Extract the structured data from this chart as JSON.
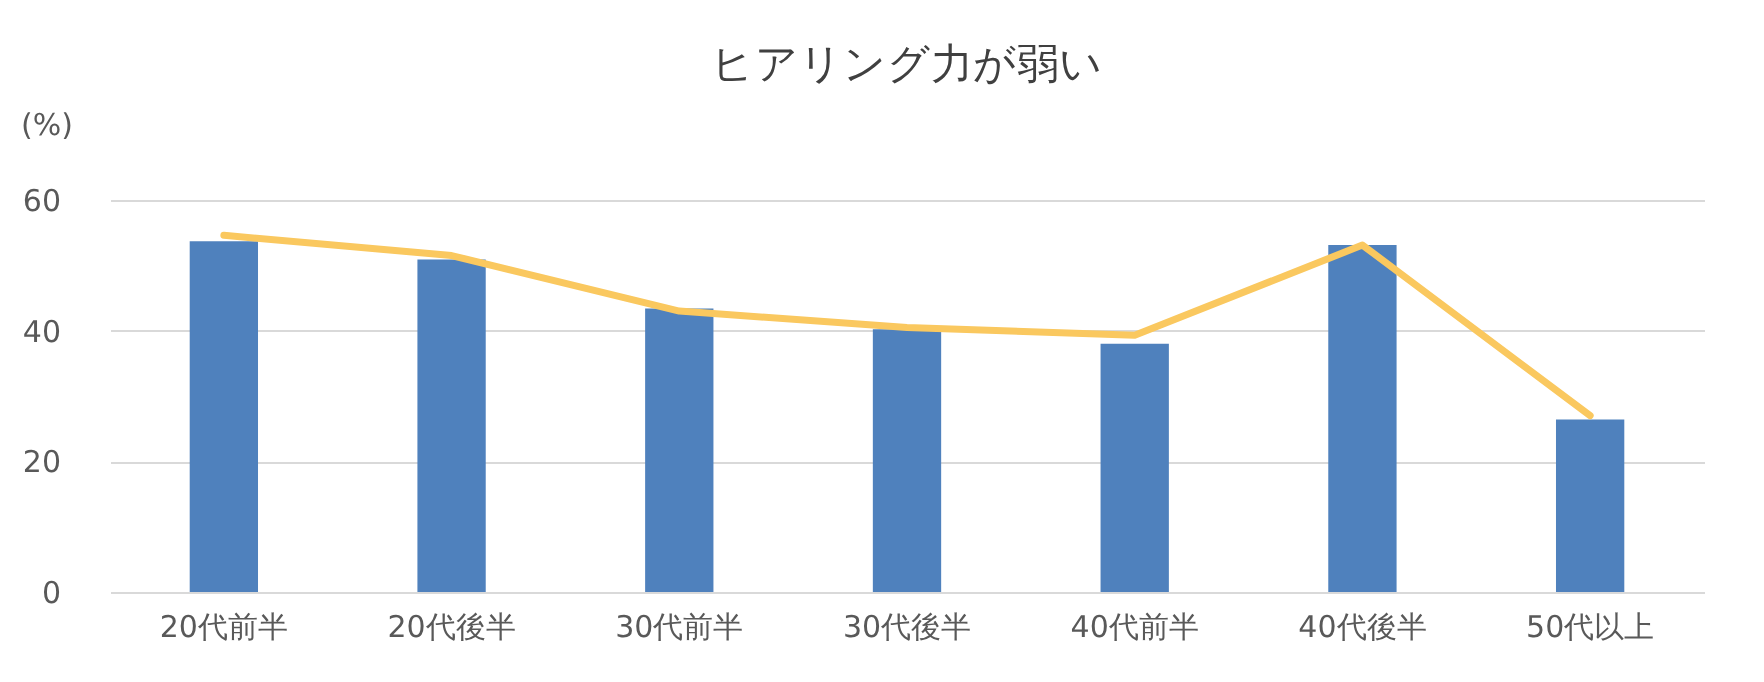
{
  "chart_data": {
    "type": "bar",
    "title": "ヒアリング力が弱い",
    "ylabel": "(%)",
    "categories": [
      "20代前半",
      "20代後半",
      "30代前半",
      "30代後半",
      "40代前半",
      "40代後半",
      "50代以上"
    ],
    "series": [
      {
        "color": "#4f81bd",
        "values": [
          53.7,
          50.9,
          43.4,
          40.2,
          38.0,
          53.1,
          26.4
        ]
      },
      {
        "type": "line",
        "color": "#fac85f",
        "values": [
          54.6,
          51.5,
          43.0,
          40.5,
          39.3,
          53.1,
          27.0
        ]
      }
    ],
    "ylim": [
      0,
      60
    ],
    "yticks": [
      0,
      20,
      40,
      60
    ],
    "grid": "y",
    "legend": false,
    "marker": "none",
    "line_style": "solid"
  }
}
